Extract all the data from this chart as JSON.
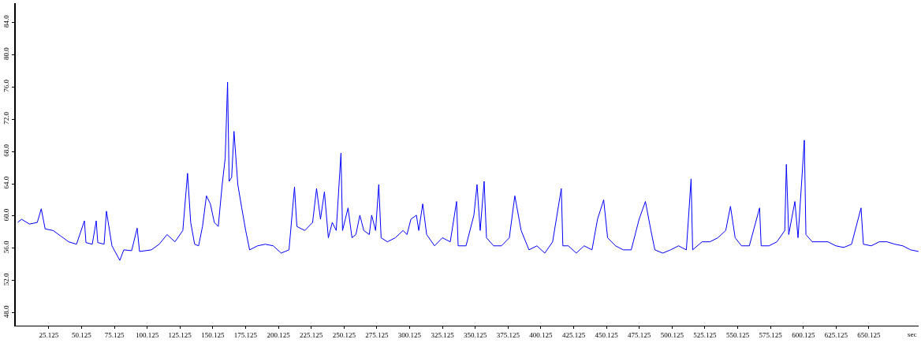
{
  "chart_data": {
    "type": "line",
    "xlabel": "sec",
    "x": [
      1.4,
      4.4,
      10.4,
      16.4,
      19.4,
      22.4,
      28.4,
      34.4,
      40.3,
      46.3,
      52.3,
      53.5,
      58.3,
      61.3,
      62.5,
      67.3,
      69.1,
      73.3,
      76.3,
      79.3,
      82.3,
      88.3,
      92.5,
      94.3,
      103.3,
      109.3,
      115.3,
      121.3,
      127.3,
      130.9,
      133.3,
      136.3,
      139.3,
      142.3,
      145.3,
      148.3,
      151.3,
      154.3,
      157.3,
      159.6,
      161.4,
      162.6,
      164.5,
      166.3,
      169.2,
      172.2,
      175.2,
      178.2,
      184.2,
      190.2,
      196.2,
      202.2,
      208.2,
      212.4,
      214.2,
      220.2,
      226.2,
      229.2,
      232.2,
      235.2,
      238.2,
      241.2,
      244.2,
      247.8,
      249.0,
      253.2,
      256.2,
      259.2,
      262.2,
      265.2,
      269.4,
      271.2,
      274.2,
      276.6,
      278.4,
      283.2,
      289.2,
      295.1,
      298.1,
      301.1,
      305.3,
      307.1,
      310.1,
      313.1,
      319.1,
      325.1,
      331.1,
      335.9,
      337.1,
      343.1,
      349.1,
      351.5,
      353.9,
      356.9,
      358.7,
      364.1,
      370.1,
      376.1,
      380.3,
      385.1,
      391.1,
      397.1,
      403.1,
      409.1,
      415.7,
      416.9,
      421.1,
      427.1,
      433.1,
      439.1,
      443.3,
      448.0,
      451.0,
      457.0,
      463.0,
      469.0,
      475.0,
      479.8,
      484.0,
      487.0,
      493.0,
      499.0,
      505.0,
      511.0,
      514.6,
      515.8,
      523.0,
      529.0,
      535.0,
      541.0,
      544.6,
      548.2,
      553.0,
      559.0,
      566.8,
      568.0,
      574.0,
      580.0,
      586.0,
      587.2,
      589.0,
      593.7,
      596.1,
      600.9,
      602.1,
      606.9,
      612.9,
      618.9,
      624.9,
      630.9,
      636.9,
      644.1,
      645.9,
      651.9,
      657.9,
      663.9,
      669.9,
      675.9,
      681.9,
      687.9
    ],
    "series": [
      {
        "color": "#0000ff",
        "values": [
          59.2,
          59.6,
          59.0,
          59.2,
          60.9,
          58.4,
          58.2,
          57.5,
          56.8,
          56.5,
          59.4,
          56.7,
          56.5,
          59.4,
          56.7,
          56.5,
          60.6,
          56.3,
          55.4,
          54.5,
          55.8,
          55.7,
          58.5,
          55.6,
          55.8,
          56.5,
          57.7,
          56.8,
          58.2,
          65.3,
          59.2,
          56.5,
          56.3,
          58.7,
          62.5,
          61.5,
          59.2,
          58.7,
          63.9,
          67.2,
          76.6,
          64.3,
          64.8,
          70.5,
          63.9,
          61.0,
          58.2,
          55.8,
          56.3,
          56.5,
          56.3,
          55.4,
          55.8,
          63.6,
          58.7,
          58.2,
          59.2,
          63.4,
          59.6,
          63.0,
          57.3,
          59.2,
          58.2,
          67.8,
          58.2,
          61.0,
          57.3,
          57.7,
          60.1,
          58.2,
          57.7,
          60.1,
          58.2,
          63.9,
          57.3,
          56.8,
          57.3,
          58.2,
          57.7,
          59.6,
          60.1,
          58.2,
          61.5,
          57.7,
          56.3,
          57.3,
          56.8,
          61.8,
          56.3,
          56.3,
          60.1,
          63.9,
          58.2,
          64.3,
          57.3,
          56.3,
          56.3,
          57.3,
          62.5,
          58.2,
          55.8,
          56.3,
          55.4,
          56.8,
          63.4,
          56.3,
          56.3,
          55.4,
          56.3,
          55.8,
          59.6,
          62.0,
          57.3,
          56.3,
          55.8,
          55.8,
          59.6,
          61.8,
          58.2,
          55.8,
          55.4,
          55.8,
          56.3,
          55.8,
          64.6,
          55.8,
          56.8,
          56.8,
          57.3,
          58.2,
          61.2,
          57.3,
          56.3,
          56.3,
          61.0,
          56.3,
          56.3,
          56.8,
          58.2,
          66.4,
          57.7,
          61.8,
          57.3,
          69.4,
          57.7,
          56.8,
          56.8,
          56.8,
          56.3,
          56.1,
          56.5,
          61.0,
          56.5,
          56.3,
          56.8,
          56.8,
          56.5,
          56.3,
          55.8,
          55.6
        ]
      }
    ],
    "xlim": [
      0,
      688
    ],
    "xticks": [
      {
        "value": 25.125,
        "label": "25.125"
      },
      {
        "value": 50.125,
        "label": "50.125"
      },
      {
        "value": 75.125,
        "label": "75.125"
      },
      {
        "value": 100.125,
        "label": "100.125"
      },
      {
        "value": 125.125,
        "label": "125.125"
      },
      {
        "value": 150.125,
        "label": "150.125"
      },
      {
        "value": 175.125,
        "label": "175.125"
      },
      {
        "value": 200.125,
        "label": "200.125"
      },
      {
        "value": 225.125,
        "label": "225.125"
      },
      {
        "value": 250.125,
        "label": "250.125"
      },
      {
        "value": 275.125,
        "label": "275.125"
      },
      {
        "value": 300.125,
        "label": "300.125"
      },
      {
        "value": 325.125,
        "label": "325.125"
      },
      {
        "value": 350.125,
        "label": "350.125"
      },
      {
        "value": 375.125,
        "label": "375.125"
      },
      {
        "value": 400.125,
        "label": "400.125"
      },
      {
        "value": 425.125,
        "label": "425.125"
      },
      {
        "value": 450.125,
        "label": "450.125"
      },
      {
        "value": 475.125,
        "label": "475.125"
      },
      {
        "value": 500.125,
        "label": "500.125"
      },
      {
        "value": 525.125,
        "label": "525.125"
      },
      {
        "value": 550.125,
        "label": "550.125"
      },
      {
        "value": 575.125,
        "label": "575.125"
      },
      {
        "value": 600.125,
        "label": "600.125"
      },
      {
        "value": 625.125,
        "label": "625.125"
      },
      {
        "value": 650.125,
        "label": "650.125"
      }
    ],
    "ylim": [
      46.4,
      86.4
    ],
    "yticks": [
      {
        "value": 48,
        "label": "48.0"
      },
      {
        "value": 52,
        "label": "52.0"
      },
      {
        "value": 56,
        "label": "56.0"
      },
      {
        "value": 60,
        "label": "60.0"
      },
      {
        "value": 64,
        "label": "64.0"
      },
      {
        "value": 68,
        "label": "68.0"
      },
      {
        "value": 72,
        "label": "72.0"
      },
      {
        "value": 76,
        "label": "76.0"
      },
      {
        "value": 80,
        "label": "80.0"
      },
      {
        "value": 84,
        "label": "84.0"
      }
    ],
    "grid": false,
    "marker": "none",
    "line_style": "solid"
  }
}
